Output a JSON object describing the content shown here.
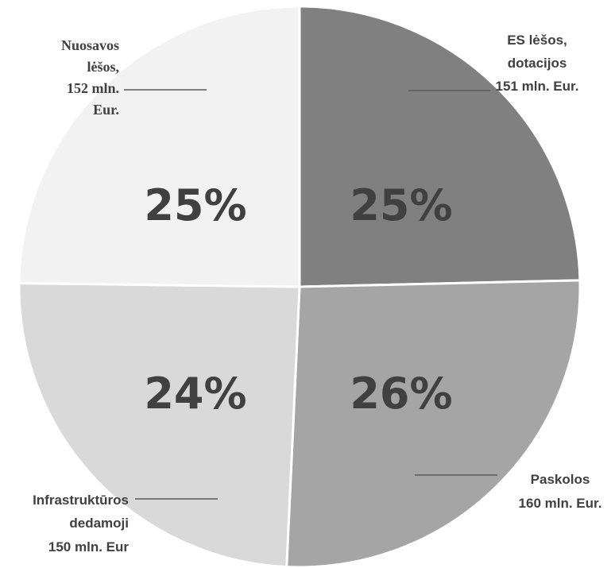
{
  "chart_data": {
    "type": "pie",
    "slices": [
      {
        "key": "es",
        "percent_label": "25%",
        "value": 151,
        "label_lines": [
          "ES lėšos,",
          "dotacijos",
          "151 mln. Eur."
        ],
        "color": "#808080"
      },
      {
        "key": "paskolos",
        "percent_label": "26%",
        "value": 160,
        "label_lines": [
          "Paskolos",
          "160 mln. Eur."
        ],
        "color": "#a5a5a5"
      },
      {
        "key": "infra",
        "percent_label": "24%",
        "value": 150,
        "label_lines": [
          "Infrastruktūros",
          "dedamoji",
          "150 mln. Eur"
        ],
        "color": "#d9d9d9"
      },
      {
        "key": "nuosavos",
        "percent_label": "25%",
        "value": 152,
        "label_lines": [
          "Nuosavos",
          "lėšos,",
          "152 mln.",
          "Eur."
        ],
        "color": "#f2f2f2"
      }
    ]
  }
}
